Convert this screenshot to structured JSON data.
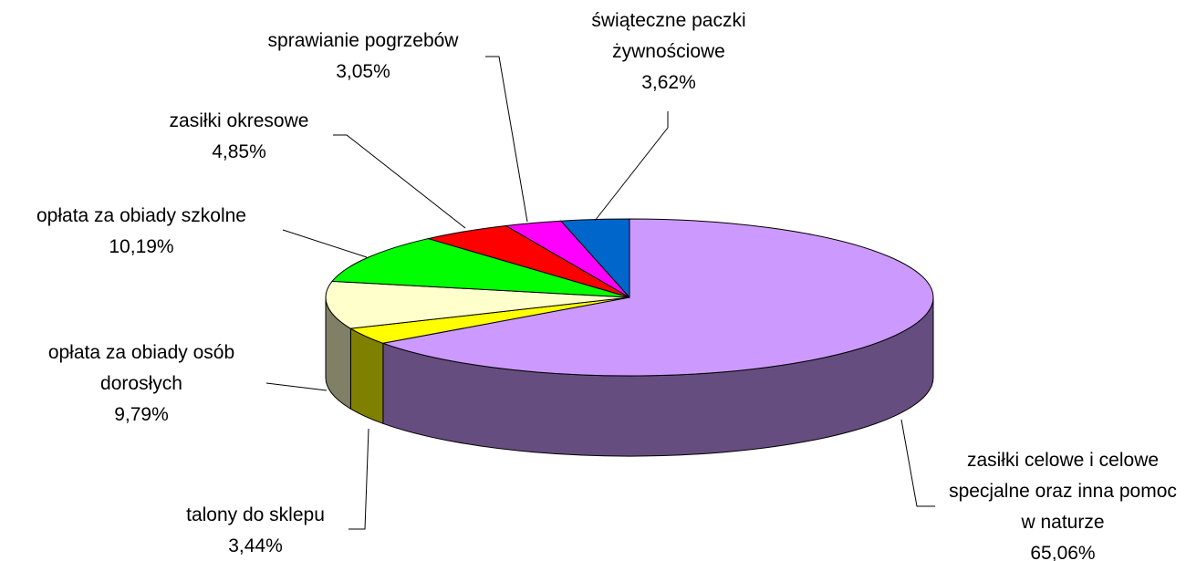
{
  "chart_data": {
    "type": "pie",
    "categories": [
      "zasiłki celowe i celowe specjalne oraz inna pomoc w naturze",
      "talony do sklepu",
      "opłata za obiady osób dorosłych",
      "opłata za obiady szkolne",
      "zasiłki okresowe",
      "sprawianie pogrzebów",
      "świąteczne paczki żywnościowe"
    ],
    "values": [
      65.06,
      3.44,
      9.79,
      10.19,
      4.85,
      3.05,
      3.62
    ],
    "value_labels": [
      "65,06%",
      "3,44%",
      "9,79%",
      "10,19%",
      "4,85%",
      "3,05%",
      "3,62%"
    ],
    "colors": [
      "#cc99ff",
      "#ffff00",
      "#ffffcc",
      "#00ff00",
      "#ff0000",
      "#ff00ff",
      "#0066cc"
    ]
  }
}
